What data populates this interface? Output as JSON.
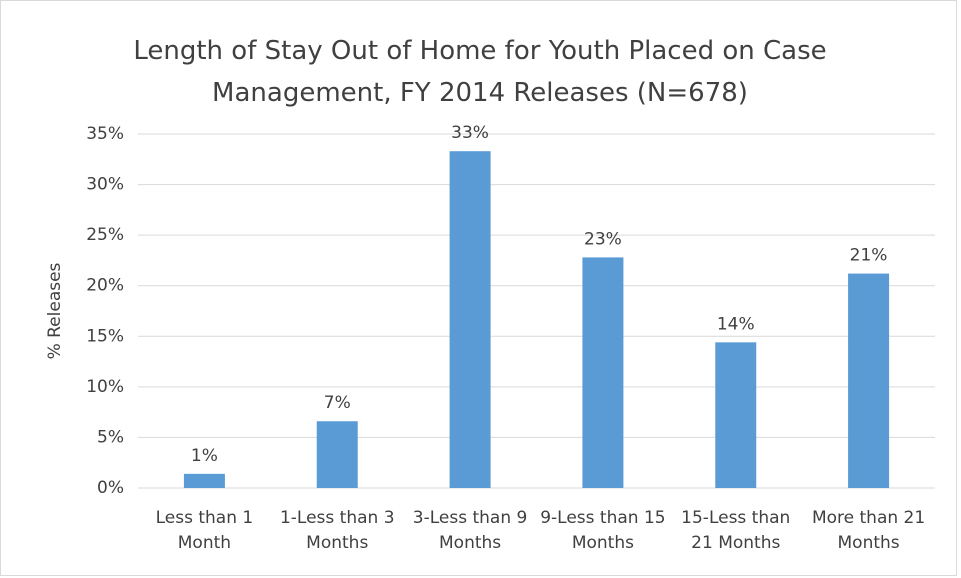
{
  "chart_data": {
    "type": "bar",
    "title": "Length of Stay Out of Home for Youth Placed on Case Management, FY 2014 Releases (N=678)",
    "ylabel": "% Releases",
    "categories": [
      "Less than 1 Month",
      "1-Less than 3 Months",
      "3-Less than 9 Months",
      "9-Less than 15 Months",
      "15-Less than 21 Months",
      "More than 21 Months"
    ],
    "values": [
      1.4,
      6.6,
      33.3,
      22.8,
      14.4,
      21.2
    ],
    "value_labels": [
      "1%",
      "7%",
      "33%",
      "23%",
      "14%",
      "21%"
    ],
    "color": "#5b9bd5",
    "ylim": [
      0,
      35
    ],
    "yticks": [
      {
        "value": 0,
        "label": "0%"
      },
      {
        "value": 5,
        "label": "5%"
      },
      {
        "value": 10,
        "label": "10%"
      },
      {
        "value": 15,
        "label": "15%"
      },
      {
        "value": 20,
        "label": "20%"
      },
      {
        "value": 25,
        "label": "25%"
      },
      {
        "value": 30,
        "label": "30%"
      },
      {
        "value": 35,
        "label": "35%"
      }
    ],
    "grid": true
  }
}
